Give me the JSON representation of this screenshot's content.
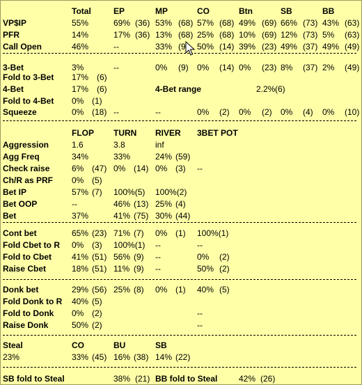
{
  "header": {
    "c1": "Total",
    "c2": "EP",
    "c3": "MP",
    "c4": "CO",
    "c5": "Btn",
    "c6": "SB",
    "c7": "BB"
  },
  "preflop": [
    {
      "label": "VP$IP",
      "v": [
        "55%",
        "69%",
        "(36)",
        "53%",
        "(68)",
        "57%",
        "(68)",
        "49%",
        "(69)",
        "66%",
        "(73)",
        "43%",
        "(63)"
      ]
    },
    {
      "label": "PFR",
      "v": [
        "14%",
        "17%",
        "(36)",
        "13%",
        "(68)",
        "25%",
        "(68)",
        "10%",
        "(69)",
        "12%",
        "(73)",
        "5%",
        "(63)"
      ]
    },
    {
      "label": "Call Open",
      "v": [
        "46%",
        "--",
        "",
        "33%",
        "(9)",
        "50%",
        "(14)",
        "39%",
        "(23)",
        "49%",
        "(37)",
        "49%",
        "(49)"
      ]
    }
  ],
  "threebet": {
    "three_bet": {
      "label": "3-Bet",
      "v": [
        "3%",
        "--",
        "",
        "0%",
        "(9)",
        "0%",
        "(14)",
        "0%",
        "(23)",
        "8%",
        "(37)",
        "2%",
        "(49)"
      ]
    },
    "fold_to_3bet": {
      "label": "Fold to 3-Bet",
      "v": [
        "17%",
        "(6)"
      ]
    },
    "four_bet": {
      "label": "4-Bet",
      "v": [
        "17%",
        "(6)"
      ]
    },
    "four_bet_range": {
      "label": "4-Bet range",
      "v": [
        "2.2%",
        "(6)"
      ]
    },
    "fold_to_4bet": {
      "label": "Fold to 4-Bet",
      "v": [
        "0%",
        "(1)"
      ]
    },
    "squeeze": {
      "label": "Squeeze",
      "v": [
        "0%",
        "(18)",
        "--",
        "--",
        "0%",
        "(2)",
        "0%",
        "(2)",
        "0%",
        "(4)",
        "0%",
        "(10)"
      ]
    }
  },
  "postflop_header": {
    "c1": "FLOP",
    "c2": "TURN",
    "c3": "RIVER",
    "c4": "3BET POT"
  },
  "postflop": [
    {
      "label": "Aggression",
      "v": [
        "1.6",
        "",
        "3.8",
        "",
        "inf",
        "",
        "",
        ""
      ]
    },
    {
      "label": "Agg Freq",
      "v": [
        "34%",
        "",
        "33%",
        "",
        "24%",
        "(59)",
        "",
        ""
      ]
    },
    {
      "label": "Check raise",
      "v": [
        "6%",
        "(47)",
        "0%",
        "(14)",
        "0%",
        "(3)",
        "--",
        ""
      ]
    },
    {
      "label": "Ch/R as PRF",
      "v": [
        "0%",
        "(5)",
        "",
        "",
        "",
        "",
        "",
        ""
      ]
    },
    {
      "label": "Bet IP",
      "v": [
        "57%",
        "(7)",
        "100%(5)",
        "",
        "100%(2)",
        "",
        "",
        ""
      ]
    },
    {
      "label": "Bet OOP",
      "v": [
        "--",
        "",
        "46%",
        "(13)",
        "25%",
        "(4)",
        "",
        ""
      ]
    },
    {
      "label": "Bet",
      "v": [
        "37%",
        "",
        "41%",
        "(75)",
        "30%",
        "(44)",
        "",
        ""
      ]
    }
  ],
  "cbet": [
    {
      "label": "Cont bet",
      "v": [
        "65%",
        "(23)",
        "71%",
        "(7)",
        "0%",
        "(1)",
        "100%(1)",
        ""
      ]
    },
    {
      "label": "Fold Cbet to R",
      "v": [
        "0%",
        "(3)",
        "100%(1)",
        "",
        "--",
        "",
        "--",
        ""
      ]
    },
    {
      "label": "Fold to Cbet",
      "v": [
        "41%",
        "(51)",
        "56%",
        "(9)",
        "--",
        "",
        "0%",
        "(2)"
      ]
    },
    {
      "label": "Raise Cbet",
      "v": [
        "18%",
        "(51)",
        "11%",
        "(9)",
        "--",
        "",
        "50%",
        "(2)"
      ]
    }
  ],
  "donk": [
    {
      "label": "Donk bet",
      "v": [
        "29%",
        "(56)",
        "25%",
        "(8)",
        "0%",
        "(1)",
        "40%",
        "(5)"
      ]
    },
    {
      "label": "Fold Donk to R",
      "v": [
        "40%",
        "(5)",
        "",
        "",
        "",
        "",
        "",
        ""
      ]
    },
    {
      "label": "Fold to Donk",
      "v": [
        "0%",
        "(2)",
        "",
        "",
        "",
        "",
        "--",
        ""
      ]
    },
    {
      "label": "Raise Donk",
      "v": [
        "50%",
        "(2)",
        "",
        "",
        "",
        "",
        "--",
        ""
      ]
    }
  ],
  "steal": {
    "label": "Steal",
    "total": "23%",
    "cols": [
      {
        "name": "CO",
        "pct": "33%",
        "n": "(45)"
      },
      {
        "name": "BU",
        "pct": "16%",
        "n": "(38)"
      },
      {
        "name": "SB",
        "pct": "14%",
        "n": "(22)"
      }
    ]
  },
  "fold_to_steal": {
    "sb_label": "SB fold to Steal",
    "sb_pct": "38%",
    "sb_n": "(21)",
    "bb_label": "BB fold to Steal",
    "bb_pct": "42%",
    "bb_n": "(26)"
  }
}
